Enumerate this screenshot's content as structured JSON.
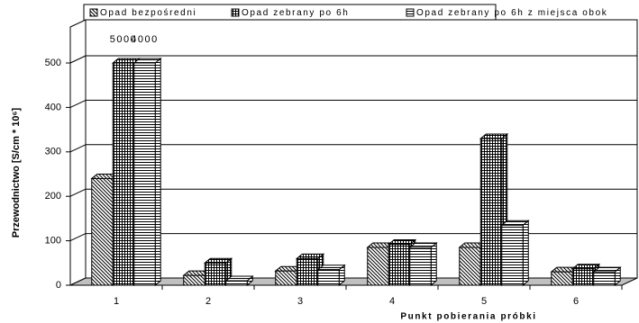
{
  "chart_data": {
    "type": "bar3d",
    "y_label": "Przewodnictwo [S/cm * 10⁶]",
    "x_label": "Punkt pobierania próbki",
    "categories": [
      "1",
      "2",
      "3",
      "4",
      "5",
      "6"
    ],
    "series": [
      {
        "name": "Opad bezpośredni",
        "color": "#000000",
        "pattern": "diagonal",
        "values": [
          240,
          22,
          32,
          85,
          85,
          30
        ]
      },
      {
        "name": "Opad zebrany po 6h",
        "color": "#000000",
        "pattern": "grid",
        "values": [
          5000,
          50,
          60,
          92,
          330,
          37
        ]
      },
      {
        "name": "Opad zebrany po 6h z miejsca obok",
        "color": "#000000",
        "pattern": "horizontal",
        "values": [
          4000,
          10,
          35,
          85,
          135,
          30
        ]
      }
    ],
    "ylim": [
      0,
      500
    ],
    "yticks": [
      0,
      100,
      200,
      300,
      400,
      500
    ],
    "grid": true,
    "legend": "top"
  }
}
